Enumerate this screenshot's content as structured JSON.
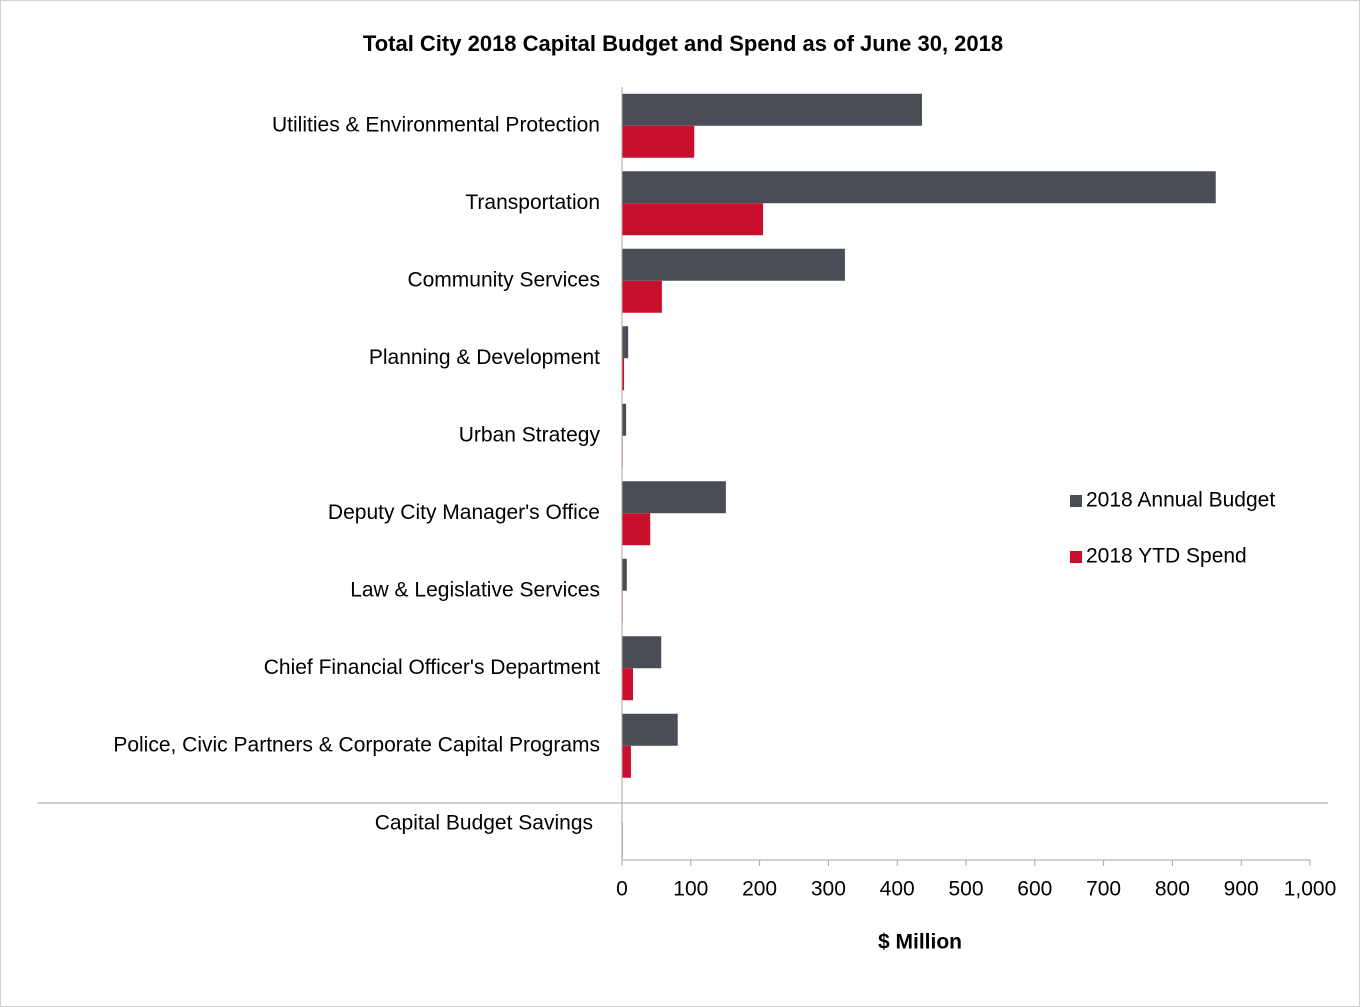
{
  "chart_data": {
    "type": "hbar",
    "title": "Total City 2018 Capital Budget and Spend as of June 30, 2018",
    "x_label": "$ Million",
    "categories": [
      "Utilities & Environmental Protection",
      "Transportation",
      "Community Services",
      "Planning & Development",
      "Urban Strategy",
      "Deputy City Manager's Office",
      "Law & Legislative Services",
      "Chief Financial Officer's Department",
      "Police, Civic Partners & Corporate Capital Programs"
    ],
    "series": [
      {
        "name": "2018 Annual Budget",
        "color": "#4a4d55",
        "values": [
          436,
          863,
          324,
          9,
          6,
          151,
          7,
          57,
          81
        ]
      },
      {
        "name": "2018 YTD Spend",
        "color": "#c8102e",
        "values": [
          105,
          205,
          58,
          3,
          1,
          41,
          1,
          16,
          13
        ]
      }
    ],
    "savings": {
      "category": "Capital Budget Savings",
      "value": 1,
      "color": "#1f5f8b"
    },
    "xlim": [
      0,
      1000
    ],
    "xticks": [
      0,
      100,
      200,
      300,
      400,
      500,
      600,
      700,
      800,
      900,
      {
        "value": 1000,
        "label": "1,000"
      }
    ],
    "legend": "right"
  }
}
